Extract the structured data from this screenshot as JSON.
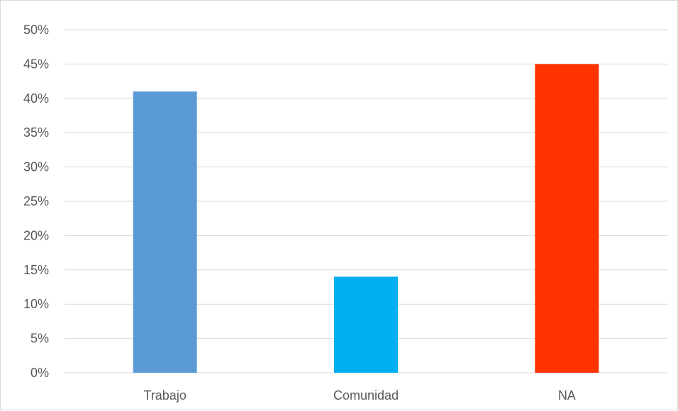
{
  "chart_data": {
    "type": "bar",
    "categories": [
      "Trabajo",
      "Comunidad",
      "NA"
    ],
    "values": [
      0.41,
      0.14,
      0.45
    ],
    "colors": [
      "#5b9bd5",
      "#00b0f0",
      "#ff3300"
    ],
    "title": "",
    "xlabel": "",
    "ylabel": "",
    "ylim": [
      0,
      0.5
    ],
    "yticks": [
      "0%",
      "5%",
      "10%",
      "15%",
      "20%",
      "25%",
      "30%",
      "35%",
      "40%",
      "45%",
      "50%"
    ],
    "grid": true,
    "legend": "none",
    "gridline_color": "#d9d9d9",
    "axis_text_color": "#595959"
  }
}
